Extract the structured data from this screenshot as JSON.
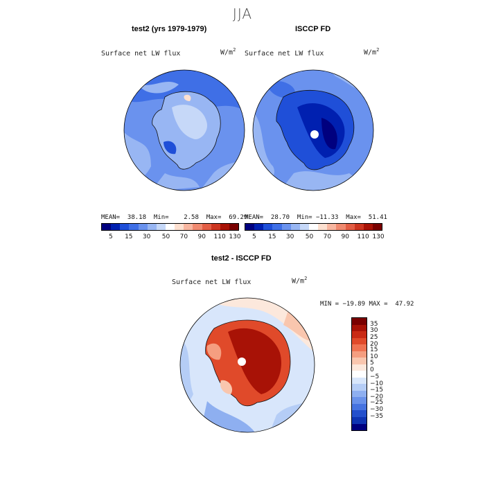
{
  "season": "JJA",
  "panels": {
    "left": {
      "title": "test2 (yrs 1979-1979)",
      "variable": "Surface net LW flux",
      "units_base": "W/m",
      "units_exp": "2",
      "stats": "MEAN=  38.18  Min=    2.58  Max=  69.29",
      "colorbar_ticks": [
        "5",
        "15",
        "30",
        "50",
        "70",
        "90",
        "110",
        "130"
      ]
    },
    "right": {
      "title": "ISCCP FD",
      "variable": "Surface net LW flux",
      "units_base": "W/m",
      "units_exp": "2",
      "stats": "MEAN=  28.70  Min= −11.33  Max=  51.41",
      "colorbar_ticks": [
        "5",
        "15",
        "30",
        "50",
        "70",
        "90",
        "110",
        "130"
      ]
    },
    "diff": {
      "title": "test2 - ISCCP FD",
      "variable": "Surface net LW flux",
      "units_base": "W/m",
      "units_exp": "2",
      "stats": "MIN = −19.89 MAX =  47.92",
      "colorbar_ticks": [
        "35",
        "30",
        "25",
        "20",
        "15",
        "10",
        "5",
        "0",
        "−5",
        "−10",
        "−15",
        "−20",
        "−25",
        "−30",
        "−35"
      ]
    }
  },
  "colors": {
    "abs_scale": [
      "#00007f",
      "#0020b0",
      "#1f4fd8",
      "#3f6fe6",
      "#6a92ee",
      "#98b6f3",
      "#c6d8f8",
      "#ffffff",
      "#fde0d0",
      "#f8b6a0",
      "#f08a70",
      "#e35e45",
      "#cc3520",
      "#a81206",
      "#7a0000"
    ],
    "diff_scale": [
      "#7a0000",
      "#a81206",
      "#c92a14",
      "#e04a2a",
      "#ef7352",
      "#f59e80",
      "#f9c6ae",
      "#fce8dc",
      "#ffffff",
      "#d8e6fb",
      "#b5cdf6",
      "#8eaff0",
      "#6a92ea",
      "#4673e0",
      "#2450cc",
      "#0f34b2",
      "#00007f"
    ]
  }
}
